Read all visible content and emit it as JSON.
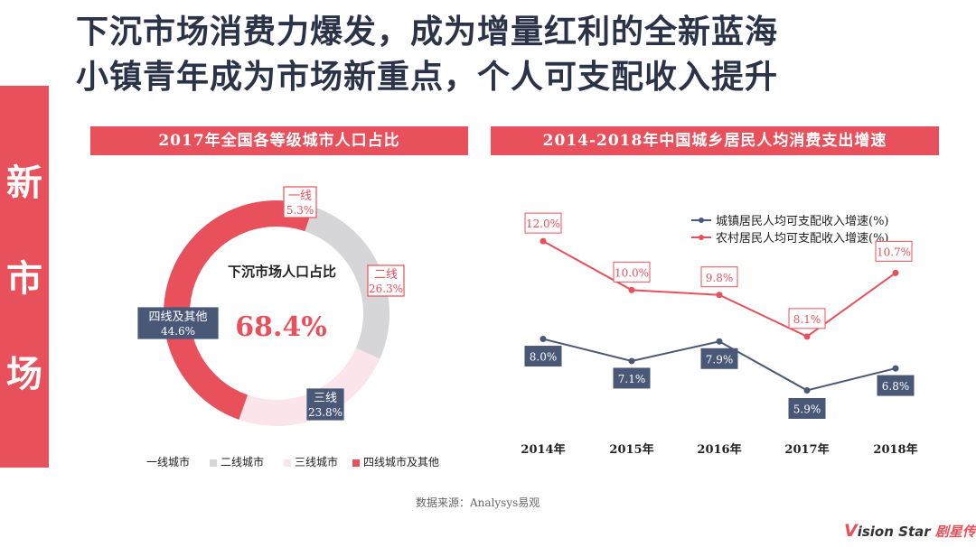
{
  "title": {
    "line1": "下沉市场消费力爆发，成为增量红利的全新蓝海",
    "line2": "小镇青年成为市场新重点，个人可支配收入提升"
  },
  "side_label": [
    "新",
    "市",
    "场"
  ],
  "source": "数据来源：Analysys易观",
  "brand": {
    "prefix": "V",
    "text": "ision Star",
    "cn": "剧星传媒"
  },
  "colors": {
    "accent": "#e8505b",
    "navy": "#4a5877",
    "grey": "#d6d6d8",
    "pink": "#fbe4ea"
  },
  "chart_data": [
    {
      "type": "pie",
      "title": "2017年全国各等级城市人口占比",
      "center_label": "下沉市场人口占比",
      "center_value": "68.4%",
      "slices": [
        {
          "name": "一线城市",
          "short": "一线",
          "value": 5.3,
          "label": "5.3%",
          "color": "#e8505b"
        },
        {
          "name": "二线城市",
          "short": "二线",
          "value": 26.3,
          "label": "26.3%",
          "color": "#d6d6d8"
        },
        {
          "name": "三线城市",
          "short": "三线",
          "value": 23.8,
          "label": "23.8%",
          "color": "#fbe4ea"
        },
        {
          "name": "四线城市及其他",
          "short": "四线及其他",
          "value": 44.6,
          "label": "44.6%",
          "color": "#e8505b"
        }
      ]
    },
    {
      "type": "line",
      "title": "2014-2018年中国城乡居民人均消费支出增速",
      "categories": [
        "2014年",
        "2015年",
        "2016年",
        "2017年",
        "2018年"
      ],
      "ylim": [
        4,
        13
      ],
      "legend_position": "top-right",
      "series": [
        {
          "name": "城镇居民人均可支配收入增速(%)",
          "values": [
            8.0,
            7.1,
            7.9,
            5.9,
            6.8
          ],
          "labels": [
            "8.0%",
            "7.1%",
            "7.9%",
            "5.9%",
            "6.8%"
          ],
          "color": "#4a5877"
        },
        {
          "name": "农村居民人均可支配收入增速(%)",
          "values": [
            12.0,
            10.0,
            9.8,
            8.1,
            10.7
          ],
          "labels": [
            "12.0%",
            "10.0%",
            "9.8%",
            "8.1%",
            "10.7%"
          ],
          "color": "#e8505b"
        }
      ]
    }
  ]
}
